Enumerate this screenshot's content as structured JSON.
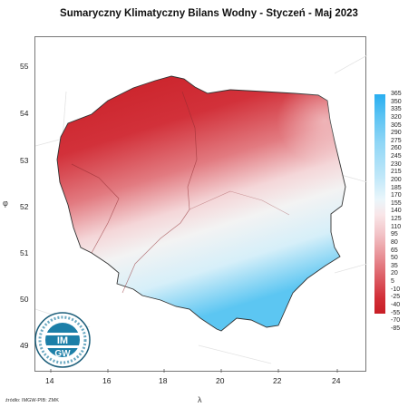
{
  "title": "Sumaryczny Klimatyczny Bilans Wodny - Styczeń - Maj 2023",
  "axes": {
    "x_label": "λ",
    "y_label": "φ",
    "x_ticks": [
      "14",
      "16",
      "18",
      "20",
      "22",
      "24"
    ],
    "y_ticks": [
      "55",
      "54",
      "53",
      "52",
      "51",
      "50",
      "49"
    ]
  },
  "legend": {
    "values": [
      "365",
      "350",
      "335",
      "320",
      "305",
      "290",
      "275",
      "260",
      "245",
      "230",
      "215",
      "200",
      "185",
      "170",
      "155",
      "140",
      "125",
      "110",
      "95",
      "80",
      "65",
      "50",
      "35",
      "20",
      "5",
      "-10",
      "-25",
      "-40",
      "-55",
      "-70",
      "-85"
    ],
    "colors": {
      "max": "#29aef0",
      "zero": "#f6f6f6",
      "min": "#c81e25"
    }
  },
  "logo": {
    "text": "IMGW"
  },
  "source": "źródło: IMGW-PIB: ZMK"
}
